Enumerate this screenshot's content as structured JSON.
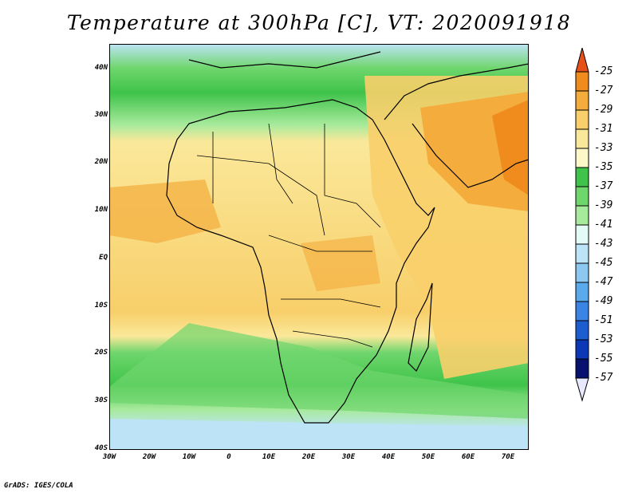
{
  "title": "Temperature at 300hPa [C], VT: 2020091918",
  "credit": "GrADS: IGES/COLA",
  "map": {
    "lat_labels": [
      "40N",
      "30N",
      "20N",
      "10N",
      "EQ",
      "10S",
      "20S",
      "30S",
      "40S"
    ],
    "lon_labels": [
      "30W",
      "20W",
      "10W",
      "0",
      "10E",
      "20E",
      "30E",
      "40E",
      "50E",
      "60E",
      "70E"
    ],
    "lat_range": [
      -40,
      45
    ],
    "lon_range": [
      -30,
      75
    ]
  },
  "colorbar": {
    "labels": [
      "-25",
      "-27",
      "-29",
      "-31",
      "-33",
      "-35",
      "-37",
      "-39",
      "-41",
      "-43",
      "-45",
      "-47",
      "-49",
      "-51",
      "-53",
      "-55",
      "-57"
    ],
    "colors": [
      "#e8501a",
      "#f08c1e",
      "#f4ac3c",
      "#f8cf6a",
      "#fae89a",
      "#fdf8c8",
      "#3fc34a",
      "#6fd66d",
      "#a8ea9c",
      "#e2fbf6",
      "#bde4f6",
      "#8cc8f0",
      "#5aaaec",
      "#3c84e4",
      "#1c5ed0",
      "#0c38b8",
      "#06126e"
    ]
  }
}
